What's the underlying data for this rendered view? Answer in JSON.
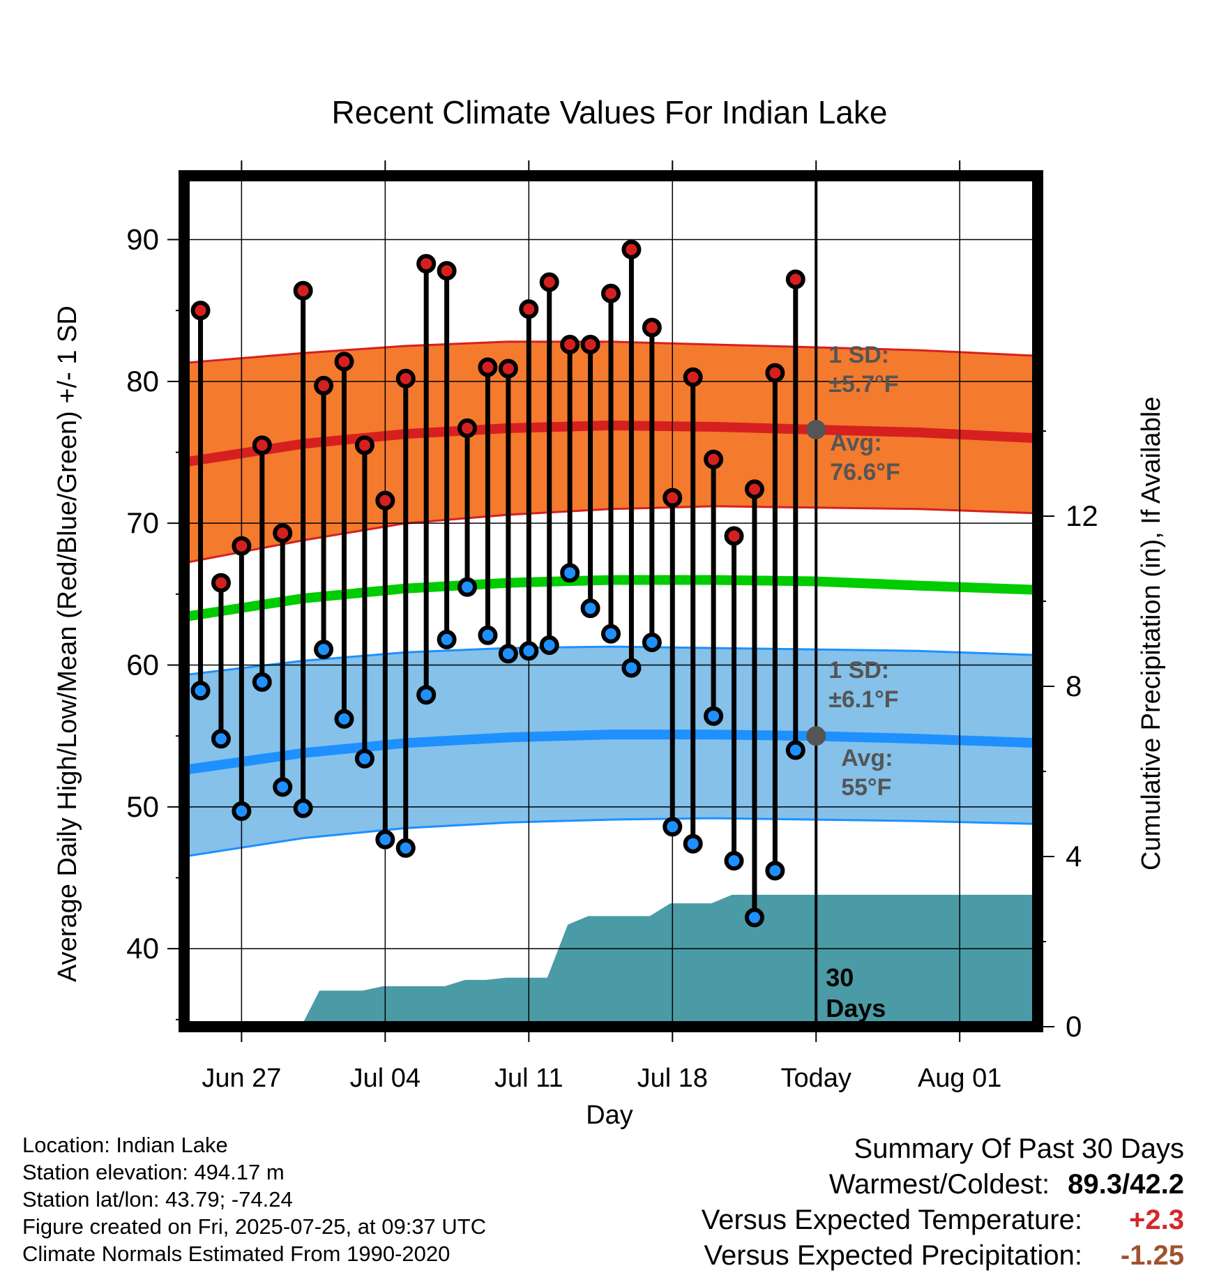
{
  "chart_data": {
    "type": "line",
    "title": "Recent Climate Values For Indian Lake",
    "xlabel": "Day",
    "ylabel": "Average Daily High/Low/Mean (Red/Blue/Green) +/- 1 SD",
    "y2label": "Cumulative Precipitation (in), If Available",
    "x_tick_labels": [
      "Jun 27",
      "Jul 04",
      "Jul 11",
      "Jul 18",
      "Today",
      "Aug 01"
    ],
    "x_ticks_day": [
      2,
      9,
      16,
      23,
      30,
      37
    ],
    "xlim_day": [
      -0.8,
      40.8
    ],
    "ylim": [
      34.5,
      94.5
    ],
    "y_ticks": [
      40,
      50,
      60,
      70,
      80,
      90
    ],
    "y2lim": [
      0,
      20
    ],
    "y2_ticks": [
      0,
      4,
      8,
      12
    ],
    "grid": true,
    "today_day": 30,
    "window_label": "30 Days",
    "days": [
      0,
      1,
      2,
      3,
      4,
      5,
      6,
      7,
      8,
      9,
      10,
      11,
      12,
      13,
      14,
      15,
      16,
      17,
      18,
      19,
      20,
      21,
      22,
      23,
      24,
      25,
      26,
      27,
      28,
      29
    ],
    "highs": [
      85.0,
      65.8,
      68.4,
      75.5,
      69.3,
      86.4,
      79.7,
      81.4,
      75.5,
      71.6,
      80.2,
      88.3,
      87.8,
      76.7,
      81.0,
      80.9,
      85.1,
      87.0,
      82.6,
      82.6,
      86.2,
      89.3,
      83.8,
      71.8,
      80.3,
      74.5,
      69.1,
      72.4,
      80.6,
      87.2
    ],
    "lows": [
      58.2,
      54.8,
      49.7,
      58.8,
      51.4,
      49.9,
      61.1,
      56.2,
      53.4,
      47.7,
      47.1,
      57.9,
      61.8,
      65.5,
      62.1,
      60.8,
      61.0,
      61.4,
      66.5,
      64.0,
      62.2,
      59.8,
      61.6,
      48.6,
      47.4,
      56.4,
      46.2,
      42.2,
      45.5,
      54.0
    ],
    "normal_high": {
      "day": [
        -0.8,
        5,
        10,
        15,
        20,
        25,
        30,
        35,
        40.8
      ],
      "avg": [
        74.3,
        75.6,
        76.3,
        76.7,
        76.9,
        76.8,
        76.6,
        76.4,
        76.0
      ],
      "sd_upper": [
        81.3,
        82.0,
        82.5,
        82.8,
        82.8,
        82.6,
        82.4,
        82.2,
        81.8
      ],
      "sd_lower": [
        67.2,
        68.8,
        70.0,
        70.6,
        71.0,
        71.2,
        71.1,
        71.0,
        70.7
      ],
      "sd_label": "1 SD:",
      "sd_value": "±5.7°F",
      "avg_label": "Avg:",
      "avg_value": "76.6°F",
      "line_color": "#d62020",
      "band_color": "#f47a2e"
    },
    "normal_low": {
      "day": [
        -0.8,
        5,
        10,
        15,
        20,
        25,
        30,
        35,
        40.8
      ],
      "avg": [
        52.6,
        53.8,
        54.5,
        54.9,
        55.1,
        55.1,
        55.0,
        54.8,
        54.5
      ],
      "sd_upper": [
        59.3,
        60.3,
        60.9,
        61.2,
        61.3,
        61.2,
        61.1,
        61.0,
        60.7
      ],
      "sd_lower": [
        46.5,
        47.8,
        48.5,
        48.9,
        49.1,
        49.2,
        49.1,
        49.0,
        48.8
      ],
      "sd_label": "1 SD:",
      "sd_value": "±6.1°F",
      "avg_label": "Avg:",
      "avg_value": "55°F",
      "line_color": "#1e90ff",
      "band_color": "#85c1e9"
    },
    "normal_mean": {
      "day": [
        -0.8,
        5,
        10,
        15,
        20,
        25,
        30,
        35,
        40.8
      ],
      "values": [
        63.4,
        64.7,
        65.4,
        65.8,
        66.0,
        66.0,
        65.9,
        65.6,
        65.3
      ],
      "color": "#00cc00"
    },
    "precip_cumulative": {
      "day": [
        -0.8,
        4.9,
        5.8,
        7.9,
        8.9,
        10.9,
        11.9,
        12.9,
        13.9,
        14.9,
        15.9,
        16.9,
        17.9,
        18.9,
        20.9,
        21.9,
        22.9,
        23.9,
        24.9,
        25.9,
        29.9,
        40.8
      ],
      "values": [
        0,
        0,
        0.85,
        0.85,
        0.95,
        0.95,
        0.95,
        1.1,
        1.1,
        1.15,
        1.15,
        1.15,
        2.4,
        2.6,
        2.6,
        2.6,
        2.9,
        2.9,
        2.9,
        3.1,
        3.1,
        3.1
      ],
      "color": "#4a9ba6"
    },
    "colors": {
      "high_dot": "#d62020",
      "low_dot": "#1e90ff",
      "today_dot": "#555555",
      "annotation": "#555555"
    }
  },
  "meta": {
    "location": "Location: Indian Lake",
    "elevation": "Station elevation: 494.17 m",
    "latlon": "Station lat/lon: 43.79; -74.24",
    "created": "Figure created on Fri, 2025-07-25, at 09:37 UTC",
    "normals": "Climate Normals Estimated From 1990-2020"
  },
  "summary": {
    "heading": "Summary Of Past 30 Days",
    "warm_cold_label": "Warmest/Coldest:",
    "warm_cold_value": "89.3/42.2",
    "temp_label": "Versus Expected Temperature:",
    "temp_value": "+2.3",
    "precip_label": "Versus Expected Precipitation:",
    "precip_value": "-1.25"
  }
}
